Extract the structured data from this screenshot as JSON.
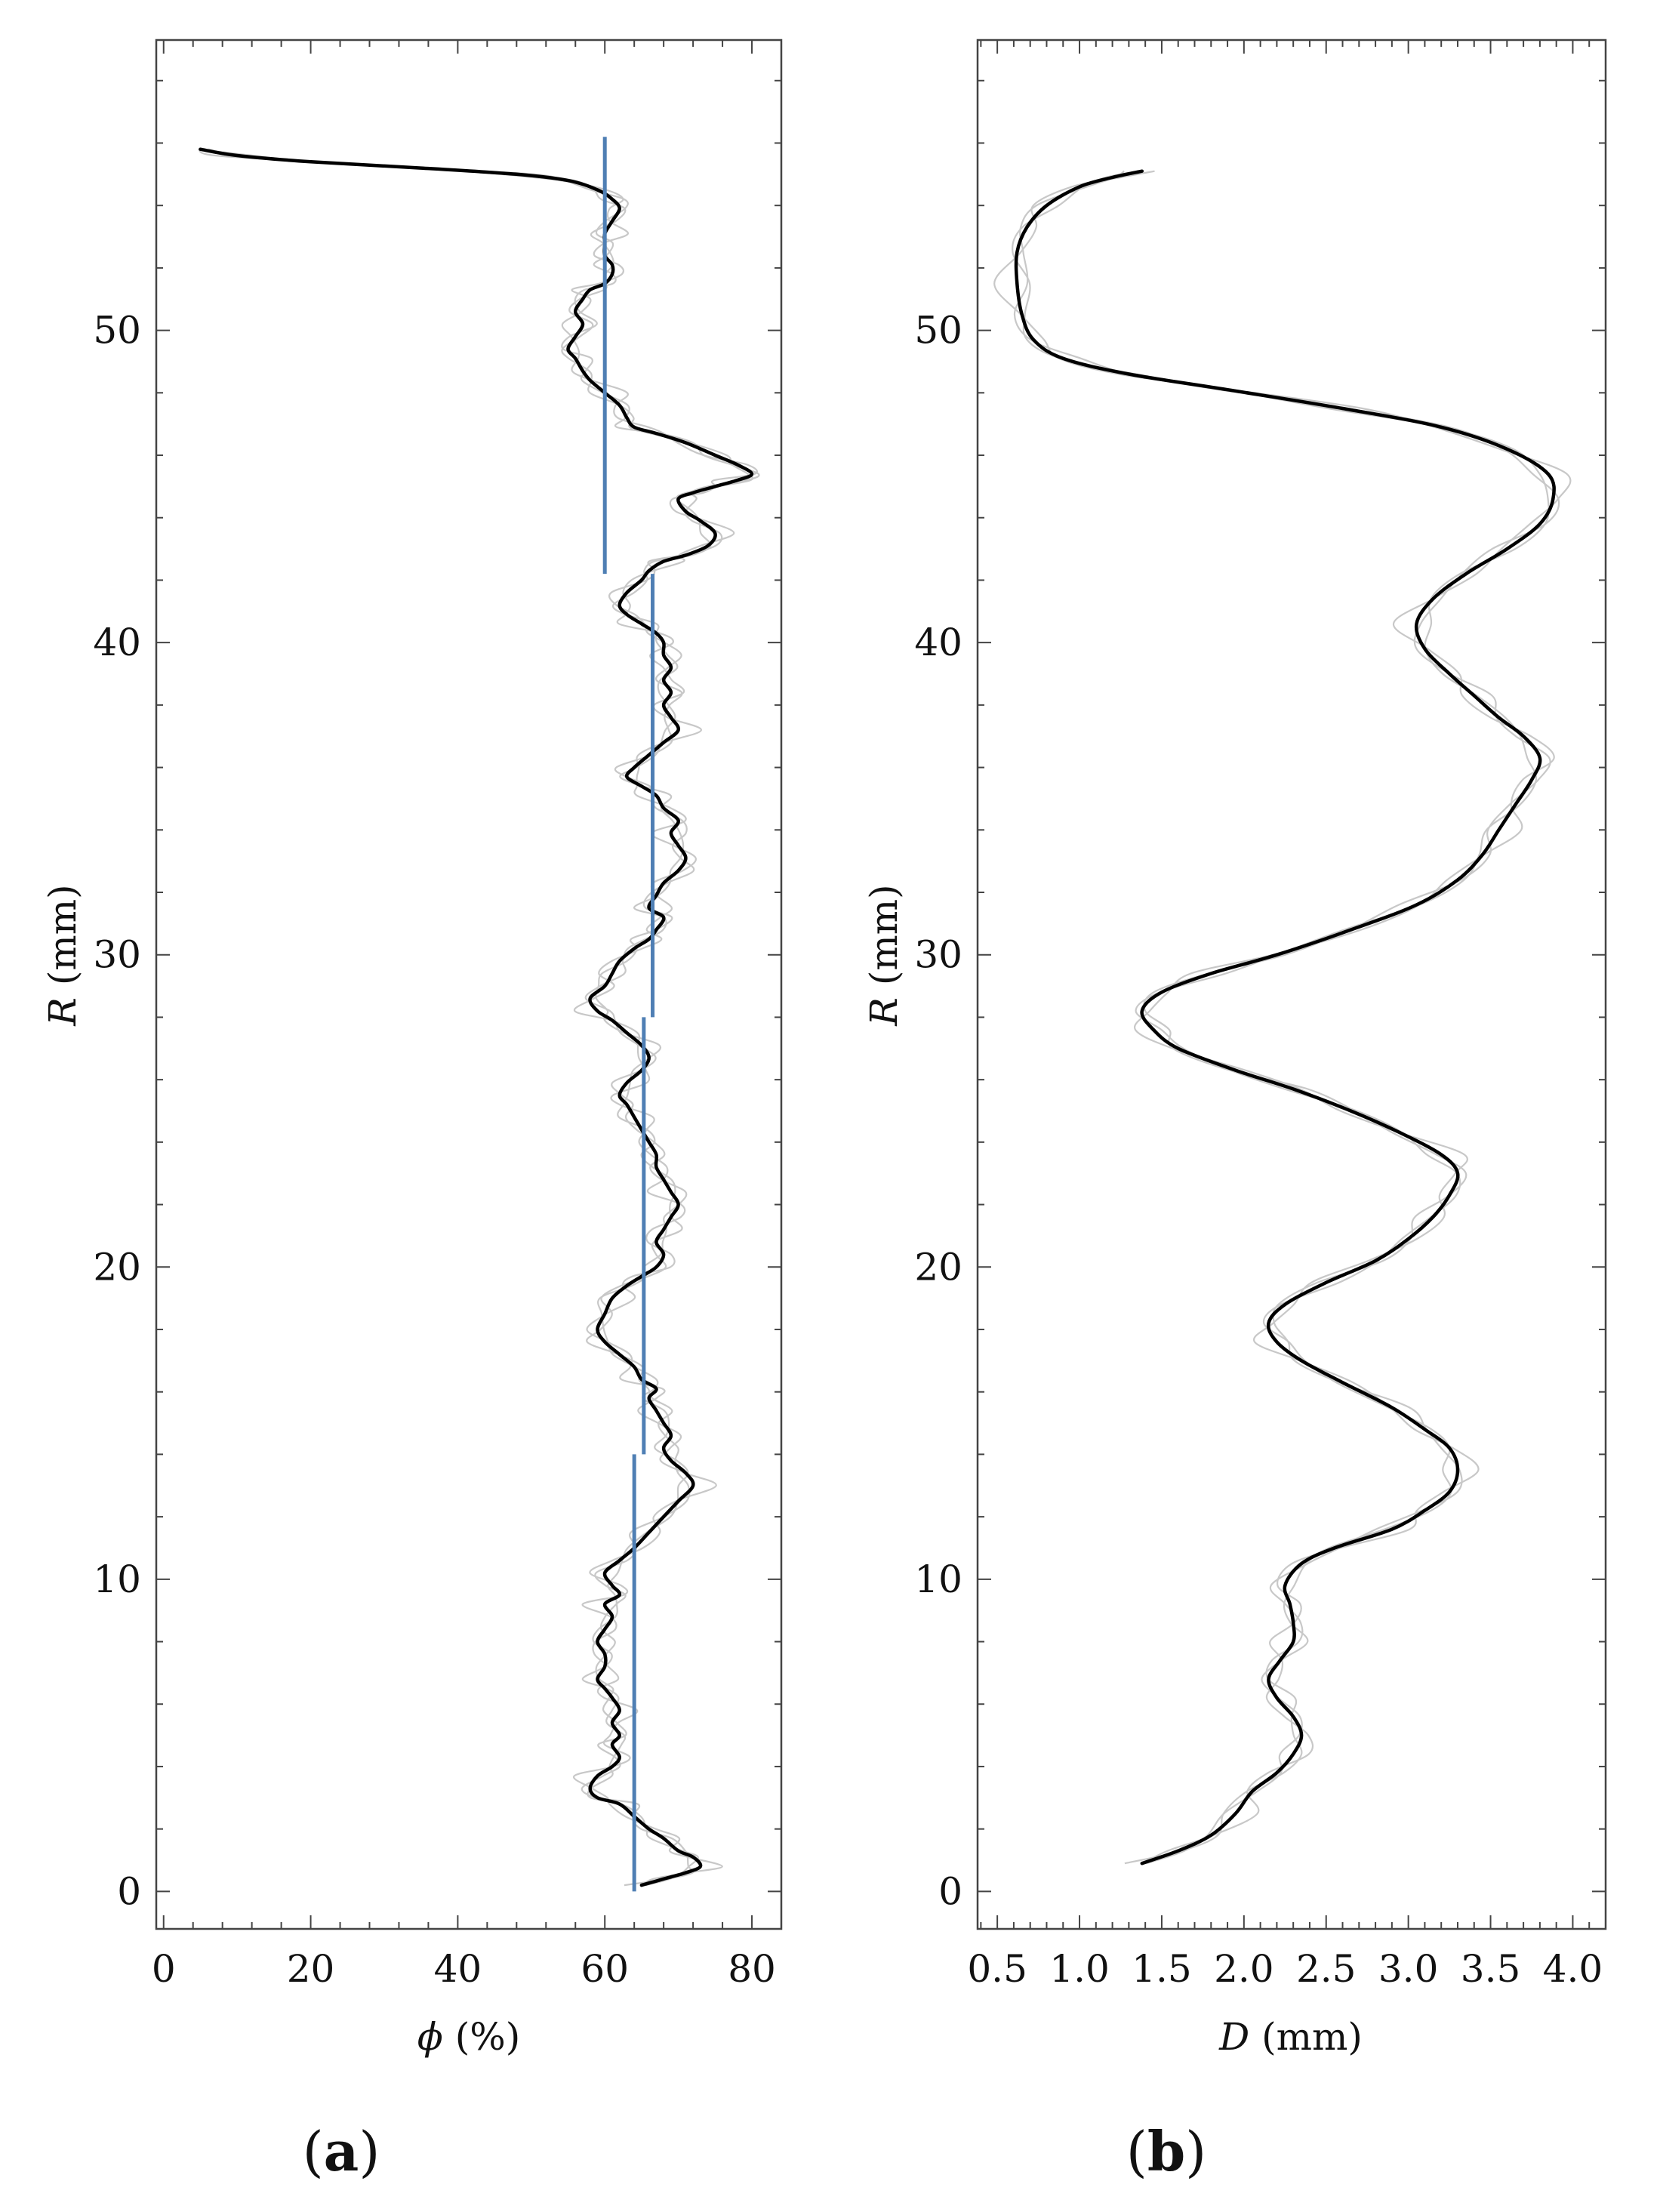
{
  "panels": {
    "a": {
      "label_open": "(",
      "label_letter": "a",
      "label_close": ")"
    },
    "b": {
      "label_open": "(",
      "label_letter": "b",
      "label_close": ")"
    }
  },
  "chart_data": [
    {
      "type": "line",
      "panel": "a",
      "xlabel": {
        "symbol": "ϕ",
        "unit": " (%)"
      },
      "ylabel": {
        "symbol": "R",
        "unit": " (mm)"
      },
      "xlim": [
        -1,
        84
      ],
      "ylim": [
        -1.2,
        59.3
      ],
      "xticks": [
        0,
        20,
        40,
        60,
        80
      ],
      "xtick_labels": [
        "0",
        "20",
        "40",
        "60",
        "80"
      ],
      "yticks": [
        0,
        10,
        20,
        30,
        40,
        50
      ],
      "ytick_labels": [
        "0",
        "10",
        "20",
        "30",
        "40",
        "50"
      ],
      "colors": {
        "mean": "#000000",
        "replicates": "#c8c8c8",
        "segments": "#4f7fb4"
      },
      "series": [
        {
          "role": "mean",
          "points": [
            [
              65,
              0.2
            ],
            [
              68,
              0.4
            ],
            [
              71,
              0.6
            ],
            [
              73,
              0.8
            ],
            [
              72,
              1.1
            ],
            [
              70,
              1.3
            ],
            [
              68,
              1.7
            ],
            [
              66,
              2.0
            ],
            [
              64,
              2.4
            ],
            [
              62,
              2.8
            ],
            [
              59,
              3.0
            ],
            [
              58,
              3.3
            ],
            [
              59,
              3.7
            ],
            [
              61,
              4.0
            ],
            [
              62,
              4.3
            ],
            [
              61,
              4.7
            ],
            [
              62,
              5.0
            ],
            [
              61,
              5.4
            ],
            [
              62,
              5.8
            ],
            [
              61,
              6.2
            ],
            [
              60,
              6.5
            ],
            [
              59,
              6.8
            ],
            [
              60,
              7.2
            ],
            [
              60,
              7.6
            ],
            [
              59,
              8.0
            ],
            [
              60,
              8.4
            ],
            [
              61,
              8.8
            ],
            [
              60,
              9.2
            ],
            [
              62,
              9.5
            ],
            [
              61,
              9.8
            ],
            [
              60,
              10.2
            ],
            [
              62,
              10.6
            ],
            [
              64,
              11.0
            ],
            [
              66,
              11.5
            ],
            [
              68,
              12.0
            ],
            [
              70,
              12.5
            ],
            [
              72,
              13.0
            ],
            [
              71,
              13.4
            ],
            [
              69,
              13.8
            ],
            [
              68,
              14.2
            ],
            [
              69,
              14.6
            ],
            [
              68,
              15.0
            ],
            [
              67,
              15.4
            ],
            [
              66,
              15.8
            ],
            [
              67,
              16.1
            ],
            [
              65,
              16.4
            ],
            [
              64,
              16.8
            ],
            [
              62,
              17.2
            ],
            [
              60,
              17.6
            ],
            [
              59,
              18.0
            ],
            [
              60,
              18.5
            ],
            [
              61,
              19.0
            ],
            [
              63,
              19.4
            ],
            [
              65,
              19.7
            ],
            [
              67,
              20.0
            ],
            [
              68,
              20.4
            ],
            [
              67,
              20.8
            ],
            [
              68,
              21.2
            ],
            [
              69,
              21.6
            ],
            [
              70,
              22.0
            ],
            [
              69,
              22.4
            ],
            [
              68,
              22.8
            ],
            [
              67,
              23.2
            ],
            [
              67,
              23.6
            ],
            [
              66,
              24.0
            ],
            [
              65,
              24.4
            ],
            [
              64,
              24.8
            ],
            [
              63,
              25.2
            ],
            [
              62,
              25.5
            ],
            [
              63,
              25.9
            ],
            [
              65,
              26.3
            ],
            [
              66,
              26.7
            ],
            [
              65,
              27.1
            ],
            [
              63,
              27.5
            ],
            [
              61,
              27.9
            ],
            [
              59,
              28.2
            ],
            [
              58,
              28.6
            ],
            [
              60,
              29.0
            ],
            [
              61,
              29.4
            ],
            [
              62,
              29.8
            ],
            [
              64,
              30.2
            ],
            [
              66,
              30.5
            ],
            [
              67,
              30.8
            ],
            [
              68,
              31.2
            ],
            [
              66,
              31.5
            ],
            [
              67,
              31.9
            ],
            [
              68,
              32.3
            ],
            [
              70,
              32.7
            ],
            [
              71,
              33.1
            ],
            [
              70,
              33.5
            ],
            [
              69,
              33.9
            ],
            [
              70,
              34.3
            ],
            [
              68,
              34.7
            ],
            [
              67,
              35.1
            ],
            [
              65,
              35.4
            ],
            [
              63,
              35.7
            ],
            [
              64,
              36.0
            ],
            [
              66,
              36.4
            ],
            [
              68,
              36.8
            ],
            [
              70,
              37.2
            ],
            [
              69,
              37.6
            ],
            [
              68,
              38.0
            ],
            [
              69,
              38.4
            ],
            [
              68,
              38.8
            ],
            [
              69,
              39.2
            ],
            [
              68,
              39.6
            ],
            [
              68,
              40.0
            ],
            [
              67,
              40.3
            ],
            [
              65,
              40.6
            ],
            [
              63,
              40.9
            ],
            [
              62,
              41.2
            ],
            [
              63,
              41.6
            ],
            [
              65,
              42.0
            ],
            [
              66,
              42.3
            ],
            [
              68,
              42.6
            ],
            [
              71,
              42.8
            ],
            [
              74,
              43.1
            ],
            [
              75,
              43.5
            ],
            [
              73,
              43.9
            ],
            [
              71,
              44.2
            ],
            [
              70,
              44.6
            ],
            [
              72,
              44.8
            ],
            [
              75,
              45.0
            ],
            [
              78,
              45.2
            ],
            [
              80,
              45.4
            ],
            [
              78,
              45.7
            ],
            [
              75,
              46.0
            ],
            [
              71,
              46.4
            ],
            [
              67,
              46.7
            ],
            [
              64,
              46.9
            ],
            [
              63,
              47.2
            ],
            [
              62,
              47.6
            ],
            [
              60,
              48.0
            ],
            [
              58,
              48.4
            ],
            [
              57,
              48.7
            ],
            [
              56,
              49.1
            ],
            [
              55,
              49.4
            ],
            [
              56,
              49.8
            ],
            [
              57,
              50.2
            ],
            [
              56,
              50.6
            ],
            [
              57,
              51.0
            ],
            [
              58,
              51.3
            ],
            [
              60,
              51.5
            ],
            [
              61,
              51.8
            ],
            [
              61,
              52.1
            ],
            [
              60,
              52.4
            ],
            [
              60,
              52.8
            ],
            [
              60,
              53.1
            ],
            [
              61,
              53.5
            ],
            [
              62,
              53.9
            ],
            [
              61,
              54.2
            ],
            [
              59,
              54.5
            ],
            [
              55,
              54.8
            ],
            [
              48,
              55.0
            ],
            [
              35,
              55.2
            ],
            [
              20,
              55.4
            ],
            [
              10,
              55.6
            ],
            [
              5,
              55.8
            ]
          ]
        }
      ],
      "segments": [
        {
          "x": 60.0,
          "y_from": 42.2,
          "y_to": 56.2
        },
        {
          "x": 66.5,
          "y_from": 28.0,
          "y_to": 42.2
        },
        {
          "x": 65.3,
          "y_from": 14.0,
          "y_to": 28.0
        },
        {
          "x": 64.0,
          "y_from": 0.0,
          "y_to": 14.0
        }
      ]
    },
    {
      "type": "line",
      "panel": "b",
      "xlabel": {
        "symbol": "D",
        "unit": " (mm)"
      },
      "ylabel": {
        "symbol": "R",
        "unit": " (mm)"
      },
      "xlim": [
        0.38,
        4.2
      ],
      "ylim": [
        -1.2,
        59.3
      ],
      "xticks": [
        0.5,
        1.0,
        1.5,
        2.0,
        2.5,
        3.0,
        3.5,
        4.0
      ],
      "xtick_labels": [
        "0.5",
        "1.0",
        "1.5",
        "2.0",
        "2.5",
        "3.0",
        "3.5",
        "4.0"
      ],
      "yticks": [
        0,
        10,
        20,
        30,
        40,
        50
      ],
      "ytick_labels": [
        "0",
        "10",
        "20",
        "30",
        "40",
        "50"
      ],
      "colors": {
        "mean": "#000000",
        "replicates": "#c8c8c8"
      },
      "series": [
        {
          "role": "mean",
          "points": [
            [
              1.38,
              0.9
            ],
            [
              1.6,
              1.3
            ],
            [
              1.8,
              1.8
            ],
            [
              1.95,
              2.5
            ],
            [
              2.05,
              3.2
            ],
            [
              2.2,
              3.8
            ],
            [
              2.3,
              4.4
            ],
            [
              2.35,
              5.0
            ],
            [
              2.3,
              5.6
            ],
            [
              2.2,
              6.2
            ],
            [
              2.15,
              6.8
            ],
            [
              2.22,
              7.4
            ],
            [
              2.3,
              8.0
            ],
            [
              2.3,
              8.6
            ],
            [
              2.28,
              9.2
            ],
            [
              2.25,
              9.8
            ],
            [
              2.35,
              10.5
            ],
            [
              2.55,
              11.0
            ],
            [
              2.9,
              11.6
            ],
            [
              3.1,
              12.2
            ],
            [
              3.25,
              12.8
            ],
            [
              3.3,
              13.5
            ],
            [
              3.25,
              14.2
            ],
            [
              3.1,
              14.8
            ],
            [
              2.9,
              15.5
            ],
            [
              2.6,
              16.3
            ],
            [
              2.35,
              17.0
            ],
            [
              2.2,
              17.6
            ],
            [
              2.15,
              18.2
            ],
            [
              2.25,
              18.8
            ],
            [
              2.5,
              19.5
            ],
            [
              2.8,
              20.2
            ],
            [
              3.0,
              20.9
            ],
            [
              3.15,
              21.6
            ],
            [
              3.25,
              22.3
            ],
            [
              3.3,
              23.0
            ],
            [
              3.2,
              23.6
            ],
            [
              2.95,
              24.3
            ],
            [
              2.65,
              25.0
            ],
            [
              2.3,
              25.7
            ],
            [
              1.95,
              26.3
            ],
            [
              1.6,
              27.0
            ],
            [
              1.45,
              27.6
            ],
            [
              1.38,
              28.2
            ],
            [
              1.5,
              28.8
            ],
            [
              1.8,
              29.4
            ],
            [
              2.2,
              30.0
            ],
            [
              2.65,
              30.8
            ],
            [
              3.05,
              31.6
            ],
            [
              3.3,
              32.4
            ],
            [
              3.45,
              33.2
            ],
            [
              3.55,
              34.0
            ],
            [
              3.65,
              34.8
            ],
            [
              3.75,
              35.6
            ],
            [
              3.8,
              36.3
            ],
            [
              3.7,
              37.0
            ],
            [
              3.55,
              37.6
            ],
            [
              3.4,
              38.3
            ],
            [
              3.25,
              39.0
            ],
            [
              3.1,
              39.8
            ],
            [
              3.05,
              40.6
            ],
            [
              3.15,
              41.4
            ],
            [
              3.35,
              42.2
            ],
            [
              3.6,
              43.0
            ],
            [
              3.8,
              43.8
            ],
            [
              3.88,
              44.6
            ],
            [
              3.85,
              45.4
            ],
            [
              3.6,
              46.2
            ],
            [
              3.2,
              46.9
            ],
            [
              2.6,
              47.5
            ],
            [
              1.9,
              48.1
            ],
            [
              1.3,
              48.6
            ],
            [
              0.9,
              49.1
            ],
            [
              0.72,
              49.7
            ],
            [
              0.65,
              50.5
            ],
            [
              0.62,
              51.5
            ],
            [
              0.62,
              52.5
            ],
            [
              0.68,
              53.3
            ],
            [
              0.8,
              54.0
            ],
            [
              1.0,
              54.6
            ],
            [
              1.2,
              54.9
            ],
            [
              1.38,
              55.1
            ]
          ]
        }
      ]
    }
  ]
}
